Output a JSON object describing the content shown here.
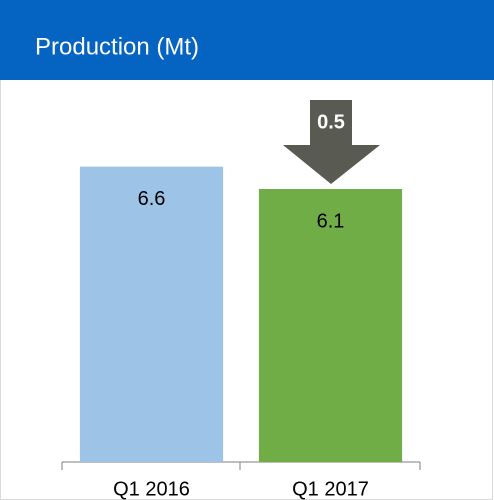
{
  "chart_data": {
    "type": "bar",
    "title": "Production (Mt)",
    "categories": [
      "Q1 2016",
      "Q1 2017"
    ],
    "values": [
      6.6,
      6.1
    ],
    "colors": [
      "#9dc3e6",
      "#70ad47"
    ],
    "ylim": [
      0,
      8
    ],
    "annotation": "0.5"
  }
}
